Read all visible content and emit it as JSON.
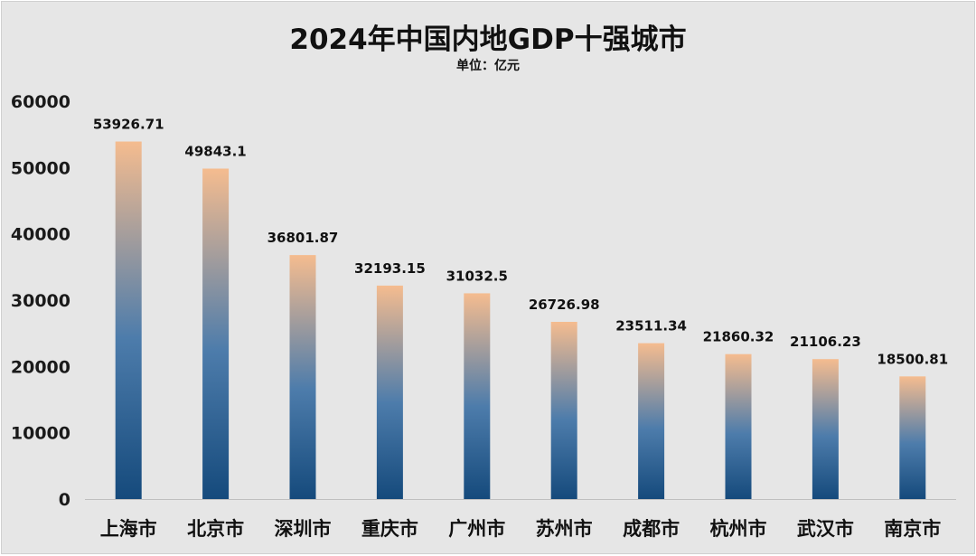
{
  "chart_data": {
    "type": "bar",
    "title": "2024年中国内地GDP十强城市",
    "subtitle": "单位：亿元",
    "categories": [
      "上海市",
      "北京市",
      "深圳市",
      "重庆市",
      "广州市",
      "苏州市",
      "成都市",
      "杭州市",
      "武汉市",
      "南京市"
    ],
    "values": [
      53926.71,
      49843.1,
      36801.87,
      32193.15,
      31032.5,
      26726.98,
      23511.34,
      21860.32,
      21106.23,
      18500.81
    ],
    "data_labels": [
      "53926.71",
      "49843.1",
      "36801.87",
      "32193.15",
      "31032.5",
      "26726.98",
      "23511.34",
      "21860.32",
      "21106.23",
      "18500.81"
    ],
    "y_ticks": [
      "0",
      "10000",
      "20000",
      "30000",
      "40000",
      "50000",
      "60000"
    ],
    "ylim": [
      0,
      60000
    ],
    "grid": false,
    "legend": "none",
    "colors": {
      "background": "#e6e6e6",
      "bar_top": "#f5bc8f",
      "bar_mid": "#4d7cab",
      "bar_bottom": "#154a7c",
      "axis_line": "#bfbfbf"
    }
  }
}
